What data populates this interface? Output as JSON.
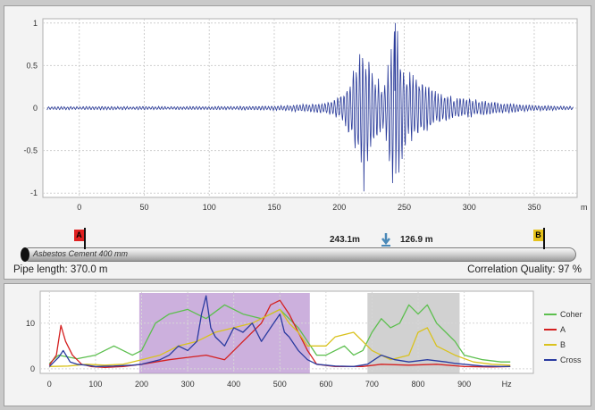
{
  "correlation": {
    "chart_data": {
      "type": "line",
      "xlabel": "m",
      "ylabel": "",
      "xlim": [
        -28,
        383
      ],
      "ylim": [
        -1.05,
        1.05
      ],
      "x_ticks": [
        0,
        50,
        100,
        150,
        200,
        250,
        300,
        350
      ],
      "y_ticks": [
        1,
        0.5,
        0,
        -0.5,
        -1
      ],
      "y_tick_labels": [
        "1",
        "0.5",
        "0",
        "-0.5",
        "-1"
      ],
      "grid": true,
      "series": [
        {
          "peak_x_m": 243.1,
          "peak_value": 1.0,
          "secondary_peak_x_m": 219,
          "secondary_peak_value": -0.98,
          "noise_amplitude": 0.02
        }
      ]
    },
    "series_color": "#2a3b9a"
  },
  "pipe": {
    "material_label": "Asbestos Cement 400 mm",
    "marker_a": "A",
    "marker_b": "B",
    "marker_a_color": "#e02020",
    "marker_b_color": "#e6c21a",
    "distance_a": "243.1m",
    "distance_b": "126.9 m",
    "length_text": "Pipe length: 370.0 m",
    "quality_text": "Correlation Quality: 97 %"
  },
  "spectrum": {
    "chart_data": {
      "type": "line",
      "xlabel": "Hz",
      "ylabel": "",
      "xlim": [
        -20,
        1050
      ],
      "ylim": [
        -1,
        17
      ],
      "x_ticks": [
        0,
        100,
        200,
        300,
        400,
        500,
        600,
        700,
        800,
        900
      ],
      "y_ticks": [
        0,
        10
      ],
      "grid": true,
      "highlight_bands": [
        {
          "from": 195,
          "to": 565,
          "color": "#b78fcf"
        },
        {
          "from": 690,
          "to": 890,
          "color": "#bdbdbd"
        }
      ],
      "legend": [
        "Coher",
        "A",
        "B",
        "Cross"
      ],
      "legend_position": "right",
      "series": [
        {
          "name": "Coher",
          "color": "#5cbf4e",
          "x": [
            0,
            20,
            60,
            100,
            140,
            180,
            200,
            230,
            260,
            300,
            340,
            380,
            420,
            460,
            500,
            540,
            560,
            580,
            600,
            620,
            640,
            660,
            680,
            700,
            720,
            740,
            760,
            780,
            800,
            820,
            840,
            860,
            880,
            900,
            940,
            980,
            1000
          ],
          "values": [
            1.2,
            3,
            2.2,
            3,
            5,
            3,
            4,
            10,
            12,
            13,
            11,
            14,
            12,
            11,
            13,
            9,
            6,
            3,
            3,
            4,
            5,
            3,
            4,
            8,
            11,
            9,
            10,
            14,
            12,
            14,
            10,
            8,
            6,
            3,
            2,
            1.5,
            1.5
          ]
        },
        {
          "name": "A",
          "color": "#d42020",
          "x": [
            0,
            15,
            25,
            35,
            50,
            70,
            90,
            120,
            160,
            200,
            260,
            300,
            340,
            380,
            420,
            460,
            480,
            500,
            520,
            540,
            560,
            580,
            620,
            680,
            720,
            780,
            840,
            900,
            960,
            1000
          ],
          "values": [
            0.8,
            3,
            9.5,
            6,
            3,
            1,
            0.5,
            0.3,
            0.5,
            1,
            2,
            2.5,
            3,
            2,
            6,
            10,
            14,
            15,
            12,
            8,
            4,
            1,
            0.5,
            0.5,
            1,
            0.8,
            1,
            0.5,
            0.4,
            0.5
          ]
        },
        {
          "name": "B",
          "color": "#d9c21e",
          "x": [
            0,
            40,
            80,
            120,
            160,
            200,
            240,
            280,
            320,
            360,
            400,
            440,
            480,
            500,
            520,
            540,
            560,
            600,
            620,
            660,
            700,
            740,
            780,
            800,
            820,
            840,
            880,
            920,
            960,
            1000
          ],
          "values": [
            0.5,
            0.6,
            1,
            0.8,
            1,
            2,
            3,
            5,
            6,
            8,
            9,
            10,
            12,
            13,
            10,
            8,
            5,
            5,
            7,
            8,
            4,
            2,
            3,
            8,
            9,
            5,
            3,
            1.5,
            1,
            0.8
          ]
        },
        {
          "name": "Cross",
          "color": "#2a3ba0",
          "x": [
            0,
            20,
            30,
            45,
            60,
            80,
            100,
            140,
            180,
            200,
            220,
            240,
            260,
            280,
            300,
            320,
            330,
            340,
            350,
            360,
            380,
            400,
            420,
            440,
            460,
            480,
            500,
            510,
            520,
            540,
            560,
            580,
            620,
            660,
            690,
            720,
            750,
            780,
            820,
            860,
            880,
            900,
            940,
            980,
            1000
          ],
          "values": [
            0.5,
            2.5,
            4,
            1.5,
            1,
            0.8,
            0.5,
            0.6,
            0.8,
            1,
            1.5,
            2,
            3,
            5,
            4,
            6,
            12,
            16,
            9,
            7,
            5,
            9,
            8,
            10,
            6,
            9,
            12,
            8,
            7,
            4,
            2,
            1,
            0.6,
            0.5,
            1,
            3,
            2,
            1.5,
            2,
            1.5,
            1.2,
            1,
            0.6,
            0.5,
            0.5
          ]
        }
      ]
    }
  }
}
